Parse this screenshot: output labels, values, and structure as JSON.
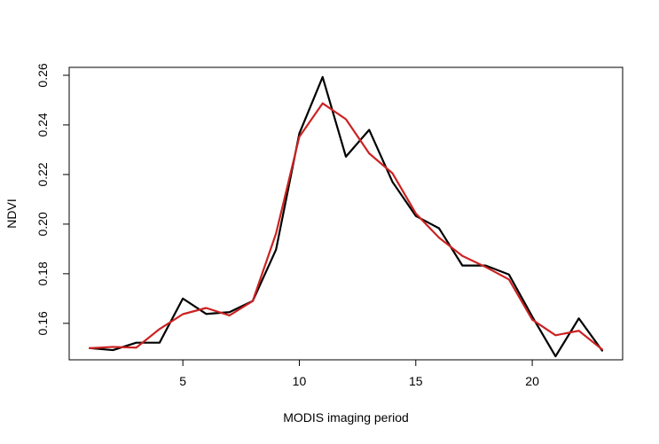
{
  "chart_data": {
    "type": "line",
    "title": "",
    "xlabel": "MODIS imaging period",
    "ylabel": "NDVI",
    "xlim": [
      0.12,
      23.88
    ],
    "ylim": [
      0.1453,
      0.2632
    ],
    "xticks": [
      5,
      10,
      15,
      20
    ],
    "xtick_labels": [
      "5",
      "10",
      "15",
      "20"
    ],
    "yticks": [
      0.16,
      0.18,
      0.2,
      0.22,
      0.24,
      0.26
    ],
    "ytick_labels": [
      "0.16",
      "0.18",
      "0.20",
      "0.22",
      "0.24",
      "0.26"
    ],
    "grid": false,
    "legend": false,
    "x": [
      1,
      2,
      3,
      4,
      5,
      6,
      7,
      8,
      9,
      10,
      11,
      12,
      13,
      14,
      15,
      16,
      17,
      18,
      19,
      20,
      21,
      22,
      23
    ],
    "series": [
      {
        "color": "#000000",
        "values": [
          0.15,
          0.1492,
          0.1522,
          0.1522,
          0.17,
          0.1638,
          0.1645,
          0.169,
          0.1897,
          0.2365,
          0.2593,
          0.2272,
          0.238,
          0.217,
          0.2033,
          0.1983,
          0.1833,
          0.1833,
          0.1797,
          0.1627,
          0.1467,
          0.162,
          0.149
        ]
      },
      {
        "color": "#cc2222",
        "values": [
          0.15,
          0.1505,
          0.1502,
          0.1577,
          0.1637,
          0.1662,
          0.1632,
          0.169,
          0.1962,
          0.2352,
          0.2487,
          0.2423,
          0.2285,
          0.2205,
          0.2043,
          0.1945,
          0.1872,
          0.1827,
          0.1777,
          0.1615,
          0.1552,
          0.157,
          0.1495
        ]
      }
    ]
  }
}
